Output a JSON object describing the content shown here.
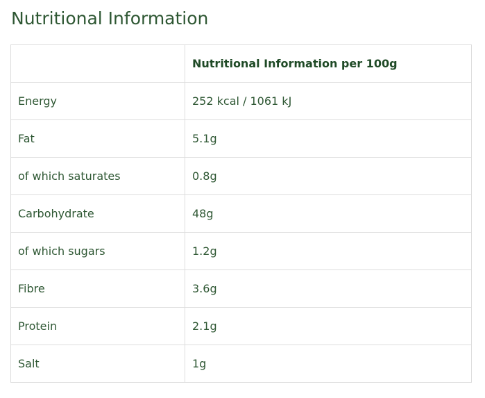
{
  "page": {
    "title": "Nutritional Information"
  },
  "table": {
    "headers": [
      "",
      "Nutritional Information per 100g"
    ],
    "rows": [
      {
        "label": "Energy",
        "value": "252 kcal / 1061 kJ"
      },
      {
        "label": "Fat",
        "value": "5.1g"
      },
      {
        "label": "of which saturates",
        "value": "0.8g"
      },
      {
        "label": "Carbohydrate",
        "value": "48g"
      },
      {
        "label": "of which sugars",
        "value": "1.2g"
      },
      {
        "label": "Fibre",
        "value": "3.6g"
      },
      {
        "label": "Protein",
        "value": "2.1g"
      },
      {
        "label": "Salt",
        "value": "1g"
      }
    ]
  },
  "colors": {
    "text": "#2e5733",
    "border": "#dddddd"
  }
}
